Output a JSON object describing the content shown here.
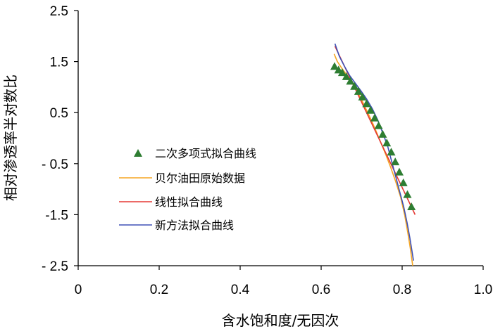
{
  "chart_data": {
    "type": "scatter",
    "xlabel": "含水饱和度/无因次",
    "ylabel": "相对渗透率半对数比",
    "xlim": [
      0,
      1.0
    ],
    "ylim": [
      -2.5,
      2.5
    ],
    "x_ticks": [
      0,
      0.2,
      0.4,
      0.6,
      0.8,
      1.0
    ],
    "x_tick_labels": [
      "0",
      "0.2",
      "0.4",
      "0.6",
      "0.8",
      "1.0"
    ],
    "y_ticks": [
      2.5,
      1.5,
      0.5,
      -0.5,
      -1.5,
      -2.5
    ],
    "y_tick_labels": [
      "2.5",
      "1.5",
      "0.5",
      "- 0.5",
      "-1.5",
      "- 2.5"
    ],
    "grid": false,
    "legend_position": "left-center",
    "legend_order": [
      "二次多项式拟合曲线",
      "贝尔油田原始数据",
      "线性拟合曲线",
      "新方法拟合曲线"
    ],
    "series": [
      {
        "name": "二次多项式拟合曲线",
        "kind": "markers",
        "marker": "triangle",
        "color": "#2e7d32",
        "x": [
          0.633,
          0.643,
          0.652,
          0.662,
          0.672,
          0.682,
          0.692,
          0.702,
          0.712,
          0.722,
          0.732,
          0.742,
          0.752,
          0.762,
          0.773,
          0.783,
          0.793,
          0.803,
          0.813,
          0.823
        ],
        "y": [
          1.4,
          1.33,
          1.28,
          1.2,
          1.11,
          1.01,
          0.91,
          0.8,
          0.67,
          0.54,
          0.39,
          0.24,
          0.07,
          -0.1,
          -0.28,
          -0.47,
          -0.67,
          -0.88,
          -1.11,
          -1.35
        ]
      },
      {
        "name": "贝尔油田原始数据",
        "kind": "line",
        "color": "#f5a623",
        "x": [
          0.632,
          0.64,
          0.65,
          0.662,
          0.675,
          0.688,
          0.7,
          0.712,
          0.724,
          0.736,
          0.748,
          0.76,
          0.772,
          0.784,
          0.796,
          0.806,
          0.814,
          0.82,
          0.826
        ],
        "y": [
          1.65,
          1.5,
          1.38,
          1.25,
          1.1,
          0.93,
          0.75,
          0.55,
          0.35,
          0.13,
          -0.1,
          -0.33,
          -0.58,
          -0.85,
          -1.15,
          -1.5,
          -1.85,
          -2.15,
          -2.5
        ]
      },
      {
        "name": "线性拟合曲线",
        "kind": "line",
        "color": "#e53935",
        "x": [
          0.634,
          0.832
        ],
        "y": [
          1.8,
          -1.5
        ]
      },
      {
        "name": "新方法拟合曲线",
        "kind": "line",
        "color": "#3f51b5",
        "x": [
          0.634,
          0.645,
          0.658,
          0.67,
          0.684,
          0.698,
          0.712,
          0.726,
          0.74,
          0.752,
          0.764,
          0.774,
          0.784,
          0.794,
          0.804,
          0.812,
          0.819,
          0.824,
          0.828
        ],
        "y": [
          1.85,
          1.6,
          1.4,
          1.23,
          1.08,
          0.93,
          0.77,
          0.58,
          0.35,
          0.1,
          -0.15,
          -0.45,
          -0.75,
          -1.05,
          -1.35,
          -1.65,
          -1.95,
          -2.2,
          -2.4
        ]
      }
    ]
  }
}
